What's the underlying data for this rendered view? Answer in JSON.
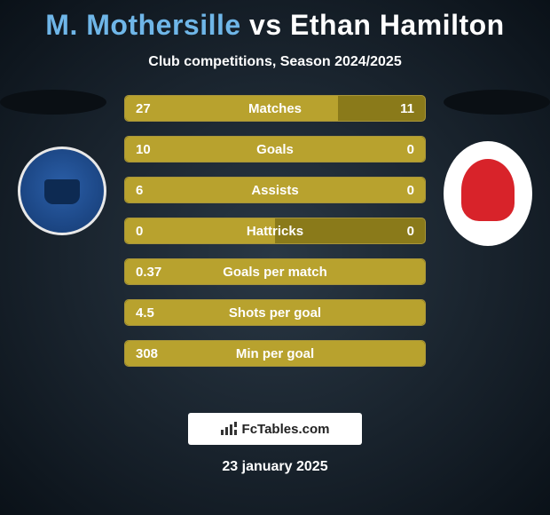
{
  "title_prefix": "M. Mothersille",
  "title_vs": " vs ",
  "title_suffix": "Ethan Hamilton",
  "subtitle": "Club competitions, Season 2024/2025",
  "colors": {
    "player1": "#6fb6e8",
    "player2": "#ffffff",
    "bar_bg": "#8a7a1a",
    "bar_fill": "#b8a22e",
    "bar_border": "#a8953a",
    "page_bg_inner": "#2a3845",
    "page_bg_outer": "#0a1118"
  },
  "bars": [
    {
      "label": "Matches",
      "left": "27",
      "right": "11",
      "fill_pct": 71
    },
    {
      "label": "Goals",
      "left": "10",
      "right": "0",
      "fill_pct": 100
    },
    {
      "label": "Assists",
      "left": "6",
      "right": "0",
      "fill_pct": 100
    },
    {
      "label": "Hattricks",
      "left": "0",
      "right": "0",
      "fill_pct": 50
    },
    {
      "label": "Goals per match",
      "left": "0.37",
      "right": "",
      "fill_pct": 100
    },
    {
      "label": "Shots per goal",
      "left": "4.5",
      "right": "",
      "fill_pct": 100
    },
    {
      "label": "Min per goal",
      "left": "308",
      "right": "",
      "fill_pct": 100
    }
  ],
  "brand": "FcTables.com",
  "date": "23 january 2025",
  "crest_left_alt": "Peterborough United",
  "crest_right_alt": "Lincoln City"
}
